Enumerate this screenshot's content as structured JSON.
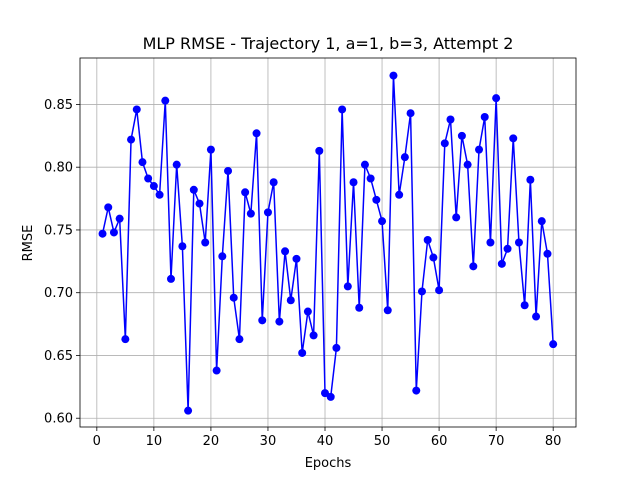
{
  "chart_data": {
    "type": "line",
    "title": "MLP RMSE - Trajectory 1, a=1, b=3, Attempt 2",
    "xlabel": "Epochs",
    "ylabel": "RMSE",
    "xlim": [
      -2.95,
      84.0
    ],
    "ylim": [
      0.593,
      0.887
    ],
    "xticks": [
      0,
      10,
      20,
      30,
      40,
      50,
      60,
      70,
      80
    ],
    "yticks": [
      0.6,
      0.65,
      0.7,
      0.75,
      0.8,
      0.85
    ],
    "xtick_labels": [
      "0",
      "10",
      "20",
      "30",
      "40",
      "50",
      "60",
      "70",
      "80"
    ],
    "ytick_labels": [
      "0.60",
      "0.65",
      "0.70",
      "0.75",
      "0.80",
      "0.85"
    ],
    "grid": true,
    "legend": false,
    "color": "#0000ff",
    "marker": "circle",
    "series": [
      {
        "x": [
          1,
          2,
          3,
          4,
          5,
          6,
          7,
          8,
          9,
          10,
          11,
          12,
          13,
          14,
          15,
          16,
          17,
          18,
          19,
          20,
          21,
          22,
          23,
          24,
          25,
          26,
          27,
          28,
          29,
          30,
          31,
          32,
          33,
          34,
          35,
          36,
          37,
          38,
          39,
          40,
          41,
          42,
          43,
          44,
          45,
          46,
          47,
          48,
          49,
          50,
          51,
          52,
          53,
          54,
          55,
          56,
          57,
          58,
          59,
          60,
          61,
          62,
          63,
          64,
          65,
          66,
          67,
          68,
          69,
          70,
          71,
          72,
          73,
          74,
          75,
          76,
          77,
          78,
          79,
          80
        ],
        "values": [
          0.747,
          0.768,
          0.748,
          0.759,
          0.663,
          0.822,
          0.846,
          0.804,
          0.791,
          0.785,
          0.778,
          0.853,
          0.711,
          0.802,
          0.737,
          0.606,
          0.782,
          0.771,
          0.74,
          0.814,
          0.638,
          0.729,
          0.797,
          0.696,
          0.663,
          0.78,
          0.763,
          0.827,
          0.678,
          0.764,
          0.788,
          0.677,
          0.733,
          0.694,
          0.727,
          0.652,
          0.685,
          0.666,
          0.813,
          0.62,
          0.617,
          0.656,
          0.846,
          0.705,
          0.788,
          0.688,
          0.802,
          0.791,
          0.774,
          0.757,
          0.686,
          0.873,
          0.778,
          0.808,
          0.843,
          0.622,
          0.701,
          0.742,
          0.728,
          0.702,
          0.819,
          0.838,
          0.76,
          0.825,
          0.802,
          0.721,
          0.814,
          0.84,
          0.74,
          0.855,
          0.723,
          0.735,
          0.823,
          0.74,
          0.69,
          0.79,
          0.681,
          0.757,
          0.731,
          0.659
        ]
      }
    ]
  }
}
